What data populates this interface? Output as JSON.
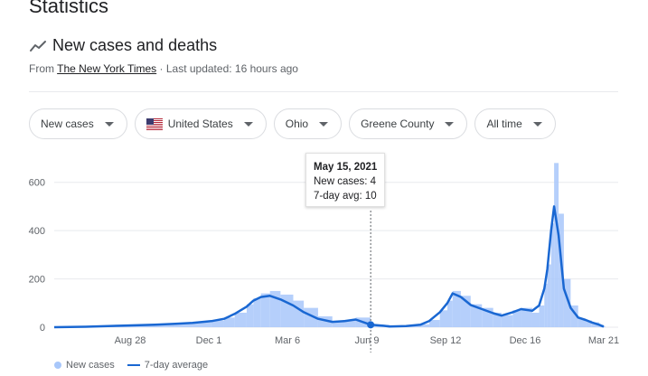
{
  "page": {
    "title": "Statistics",
    "section_title": "New cases and deaths",
    "source_prefix": "From",
    "source_name": "The New York Times",
    "source_suffix": "· Last updated: 16 hours ago"
  },
  "filters": {
    "metric": "New cases",
    "country": "United States",
    "state": "Ohio",
    "county": "Greene County",
    "range": "All time"
  },
  "tooltip": {
    "date": "May 15, 2021",
    "cases_line": "New cases: 4",
    "avg_line": "7-day avg: 10"
  },
  "legend": {
    "cases": "New cases",
    "avg": "7-day average"
  },
  "colors": {
    "bars": "#a8c7fa",
    "average": "#1967d2",
    "grid": "#e8eaed"
  },
  "chart_data": {
    "type": "area",
    "x_unit": "date",
    "x": [
      "2020-03-20",
      "2020-05-01",
      "2020-06-15",
      "2020-08-01",
      "2020-08-28",
      "2020-09-20",
      "2020-10-15",
      "2020-11-01",
      "2020-11-15",
      "2020-12-01",
      "2020-12-10",
      "2020-12-20",
      "2021-01-01",
      "2021-01-15",
      "2021-02-01",
      "2021-02-15",
      "2021-03-06",
      "2021-03-25",
      "2021-04-10",
      "2021-04-25",
      "2021-05-15",
      "2021-06-01",
      "2021-06-09",
      "2021-07-01",
      "2021-07-20",
      "2021-08-01",
      "2021-08-15",
      "2021-08-25",
      "2021-09-01",
      "2021-09-12",
      "2021-09-25",
      "2021-10-10",
      "2021-10-25",
      "2021-11-05",
      "2021-11-20",
      "2021-12-01",
      "2021-12-16",
      "2021-12-25",
      "2022-01-01",
      "2022-01-05",
      "2022-01-10",
      "2022-01-14",
      "2022-01-20",
      "2022-01-27",
      "2022-02-05",
      "2022-02-15",
      "2022-02-25",
      "2022-03-05",
      "2022-03-15",
      "2022-03-21"
    ],
    "series": [
      {
        "name": "New cases",
        "values": [
          0,
          3,
          8,
          12,
          16,
          20,
          28,
          40,
          60,
          95,
          120,
          140,
          150,
          135,
          110,
          80,
          45,
          25,
          30,
          40,
          4,
          10,
          3,
          6,
          12,
          30,
          70,
          110,
          150,
          130,
          95,
          80,
          60,
          50,
          70,
          80,
          60,
          90,
          180,
          260,
          430,
          680,
          470,
          200,
          90,
          35,
          28,
          20,
          10,
          4
        ]
      },
      {
        "name": "7-day average",
        "values": [
          0,
          2,
          6,
          10,
          14,
          18,
          25,
          35,
          55,
          85,
          110,
          125,
          130,
          115,
          90,
          62,
          35,
          22,
          25,
          32,
          10,
          6,
          3,
          5,
          10,
          26,
          62,
          100,
          140,
          125,
          92,
          75,
          58,
          48,
          62,
          75,
          68,
          90,
          160,
          240,
          400,
          500,
          380,
          160,
          80,
          40,
          30,
          20,
          10,
          2
        ]
      }
    ],
    "x_ticks": [
      "Aug 28",
      "Dec 1",
      "Mar 6",
      "Jun 9",
      "Sep 12",
      "Dec 16",
      "Mar 21"
    ],
    "y_ticks": [
      "0",
      "200",
      "400",
      "600"
    ],
    "ylim": [
      0,
      700
    ],
    "xlim": [
      "2020-03-20",
      "2022-03-21"
    ],
    "grid": true,
    "legend_position": "bottom-left",
    "highlight_x": "2021-05-15"
  }
}
